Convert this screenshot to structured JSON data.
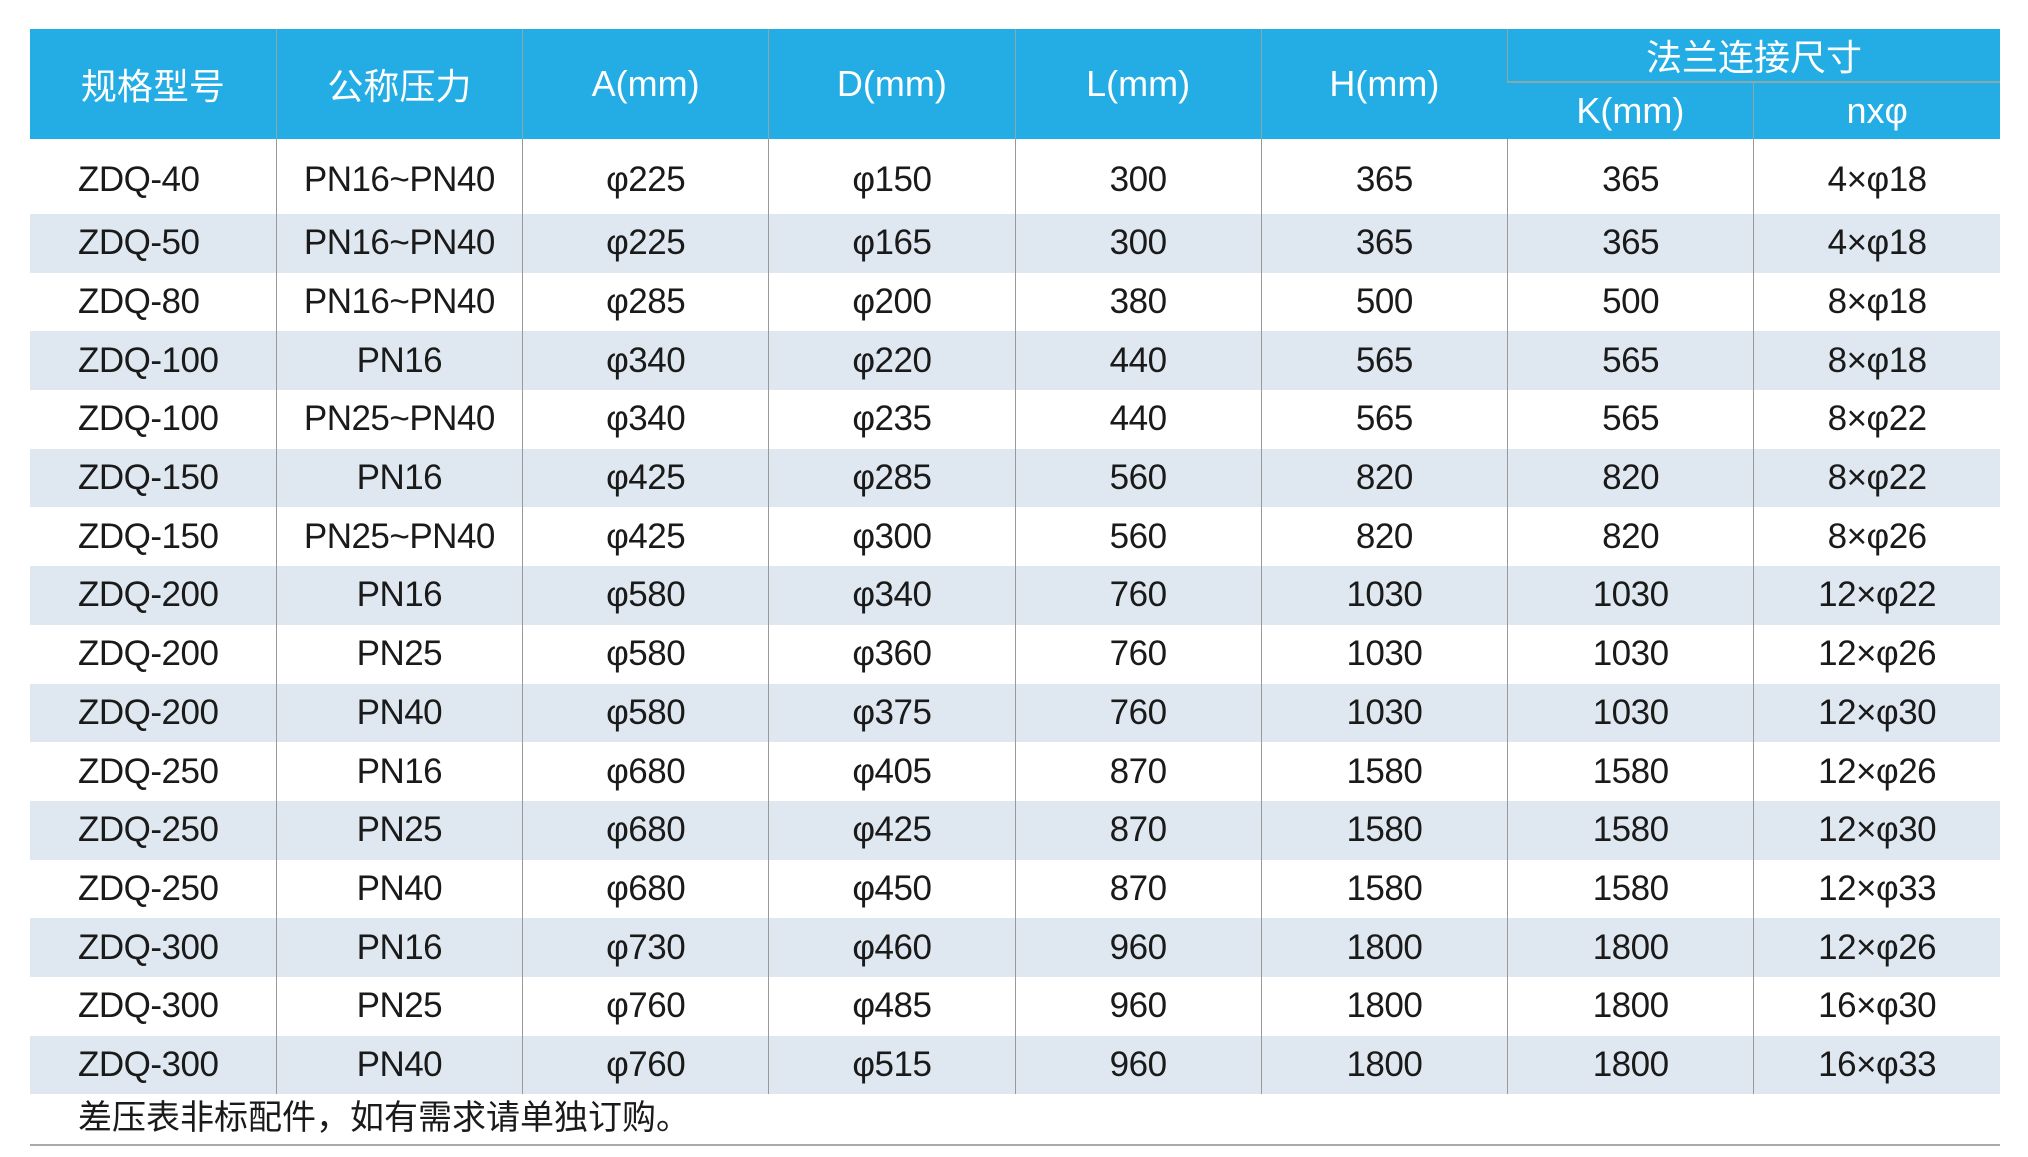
{
  "header": {
    "model": "规格型号",
    "pressure": "公称压力",
    "a": "A(mm)",
    "d": "D(mm)",
    "l": "L(mm)",
    "h": "H(mm)",
    "flange_group": "法兰连接尺寸",
    "k": "K(mm)",
    "n_phi": "nxφ"
  },
  "rows": [
    [
      "ZDQ-40",
      "PN16~PN40",
      "φ225",
      "φ150",
      "300",
      "365",
      "365",
      "4×φ18"
    ],
    [
      "ZDQ-50",
      "PN16~PN40",
      "φ225",
      "φ165",
      "300",
      "365",
      "365",
      "4×φ18"
    ],
    [
      "ZDQ-80",
      "PN16~PN40",
      "φ285",
      "φ200",
      "380",
      "500",
      "500",
      "8×φ18"
    ],
    [
      "ZDQ-100",
      "PN16",
      "φ340",
      "φ220",
      "440",
      "565",
      "565",
      "8×φ18"
    ],
    [
      "ZDQ-100",
      "PN25~PN40",
      "φ340",
      "φ235",
      "440",
      "565",
      "565",
      "8×φ22"
    ],
    [
      "ZDQ-150",
      "PN16",
      "φ425",
      "φ285",
      "560",
      "820",
      "820",
      "8×φ22"
    ],
    [
      "ZDQ-150",
      "PN25~PN40",
      "φ425",
      "φ300",
      "560",
      "820",
      "820",
      "8×φ26"
    ],
    [
      "ZDQ-200",
      "PN16",
      "φ580",
      "φ340",
      "760",
      "1030",
      "1030",
      "12×φ22"
    ],
    [
      "ZDQ-200",
      "PN25",
      "φ580",
      "φ360",
      "760",
      "1030",
      "1030",
      "12×φ26"
    ],
    [
      "ZDQ-200",
      "PN40",
      "φ580",
      "φ375",
      "760",
      "1030",
      "1030",
      "12×φ30"
    ],
    [
      "ZDQ-250",
      "PN16",
      "φ680",
      "φ405",
      "870",
      "1580",
      "1580",
      "12×φ26"
    ],
    [
      "ZDQ-250",
      "PN25",
      "φ680",
      "φ425",
      "870",
      "1580",
      "1580",
      "12×φ30"
    ],
    [
      "ZDQ-250",
      "PN40",
      "φ680",
      "φ450",
      "870",
      "1580",
      "1580",
      "12×φ33"
    ],
    [
      "ZDQ-300",
      "PN16",
      "φ730",
      "φ460",
      "960",
      "1800",
      "1800",
      "12×φ26"
    ],
    [
      "ZDQ-300",
      "PN25",
      "φ760",
      "φ485",
      "960",
      "1800",
      "1800",
      "16×φ30"
    ],
    [
      "ZDQ-300",
      "PN40",
      "φ760",
      "φ515",
      "960",
      "1800",
      "1800",
      "16×φ33"
    ]
  ],
  "note": "差压表非标配件，如有需求请单独订购。",
  "colors": {
    "header_bg": "#23ade4",
    "alt_row_bg": "#dfe8f0"
  }
}
